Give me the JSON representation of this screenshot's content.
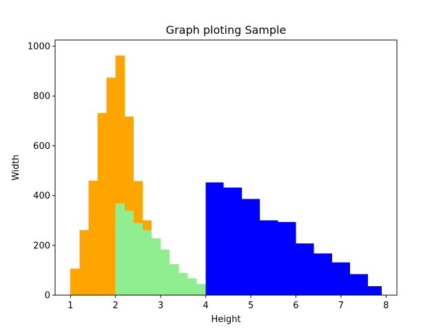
{
  "chart_data": {
    "type": "bar",
    "title": "Graph ploting Sample",
    "xlabel": "Height",
    "ylabel": "Width",
    "xlim": [
      0.66,
      8.24
    ],
    "ylim": [
      0,
      1025
    ],
    "xticks": [
      1,
      2,
      3,
      4,
      5,
      6,
      7,
      8
    ],
    "yticks": [
      0,
      200,
      400,
      600,
      800,
      1000
    ],
    "grid": false,
    "legend": "none",
    "series": [
      {
        "color": "#ffa500",
        "bins": [
          {
            "x0": 1.0,
            "x1": 1.2,
            "value": 107
          },
          {
            "x0": 1.2,
            "x1": 1.4,
            "value": 262
          },
          {
            "x0": 1.4,
            "x1": 1.6,
            "value": 460
          },
          {
            "x0": 1.6,
            "x1": 1.8,
            "value": 731
          },
          {
            "x0": 1.8,
            "x1": 2.0,
            "value": 874
          },
          {
            "x0": 2.0,
            "x1": 2.2,
            "value": 962
          },
          {
            "x0": 2.2,
            "x1": 2.4,
            "value": 717
          },
          {
            "x0": 2.4,
            "x1": 2.6,
            "value": 458
          },
          {
            "x0": 2.6,
            "x1": 2.8,
            "value": 301
          }
        ]
      },
      {
        "color": "#90ee90",
        "bins": [
          {
            "x0": 2.0,
            "x1": 2.2,
            "value": 368
          },
          {
            "x0": 2.2,
            "x1": 2.4,
            "value": 339
          },
          {
            "x0": 2.4,
            "x1": 2.6,
            "value": 289
          },
          {
            "x0": 2.6,
            "x1": 2.8,
            "value": 262
          },
          {
            "x0": 2.8,
            "x1": 3.0,
            "value": 229
          },
          {
            "x0": 3.0,
            "x1": 3.2,
            "value": 183
          },
          {
            "x0": 3.2,
            "x1": 3.4,
            "value": 124
          },
          {
            "x0": 3.4,
            "x1": 3.6,
            "value": 89
          },
          {
            "x0": 3.6,
            "x1": 3.8,
            "value": 68
          },
          {
            "x0": 3.8,
            "x1": 4.0,
            "value": 44
          }
        ]
      },
      {
        "color": "#0000ff",
        "bins": [
          {
            "x0": 4.0,
            "x1": 4.4,
            "value": 453
          },
          {
            "x0": 4.4,
            "x1": 4.8,
            "value": 432
          },
          {
            "x0": 4.8,
            "x1": 5.2,
            "value": 387
          },
          {
            "x0": 5.2,
            "x1": 5.6,
            "value": 301
          },
          {
            "x0": 5.6,
            "x1": 6.0,
            "value": 294
          },
          {
            "x0": 6.0,
            "x1": 6.4,
            "value": 208
          },
          {
            "x0": 6.4,
            "x1": 6.8,
            "value": 167
          },
          {
            "x0": 6.8,
            "x1": 7.2,
            "value": 132
          },
          {
            "x0": 7.2,
            "x1": 7.6,
            "value": 85
          },
          {
            "x0": 7.6,
            "x1": 7.9,
            "value": 36
          }
        ]
      }
    ]
  }
}
